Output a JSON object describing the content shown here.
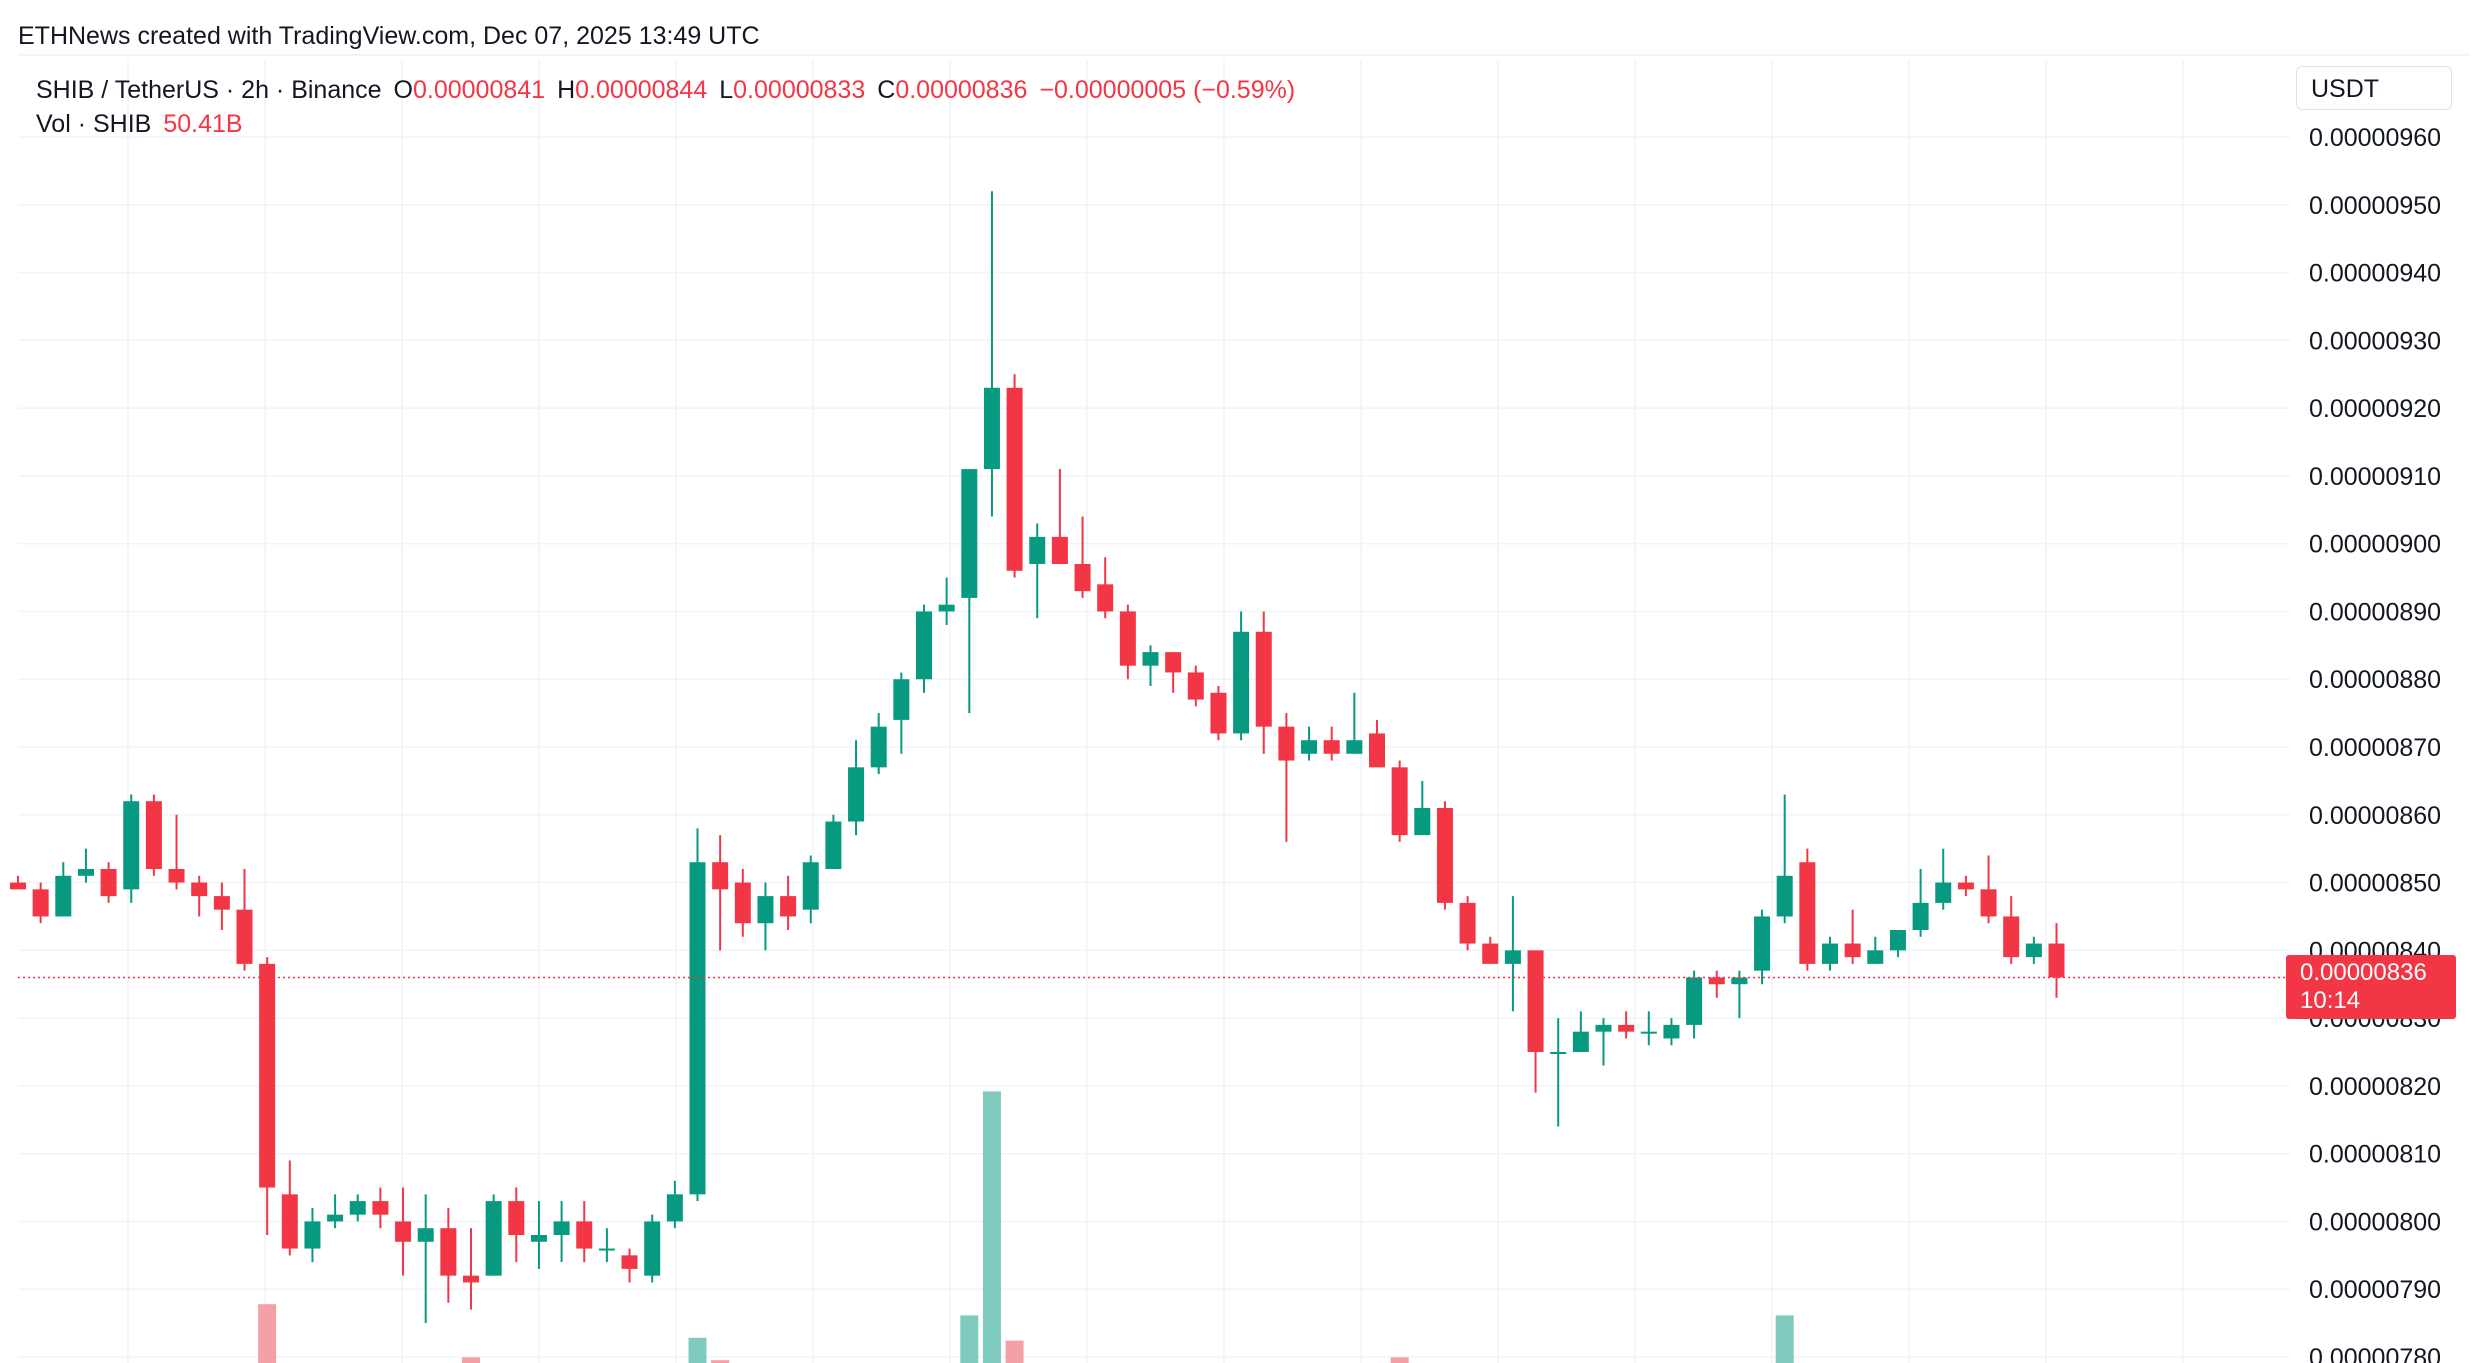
{
  "header": {
    "attribution": "ETHNews created with TradingView.com, Dec 07, 2025 13:49 UTC"
  },
  "legend": {
    "symbol": "SHIB / TetherUS · 2h · Binance",
    "open_label": "O",
    "open": "0.00000841",
    "high_label": "H",
    "high": "0.00000844",
    "low_label": "L",
    "low": "0.00000833",
    "close_label": "C",
    "close": "0.00000836",
    "change": "−0.00000005 (−0.59%)",
    "vol_label": "Vol · SHIB",
    "vol_value": "50.41B"
  },
  "axis": {
    "currency": "USDT"
  },
  "last_price": {
    "price": "0.00000836",
    "countdown": "10:14"
  },
  "colors": {
    "up": "#089981",
    "down": "#f23645",
    "up_volume": "#7fcbbf",
    "down_volume": "#f59fa6",
    "grid": "#f0f3fa",
    "text": "#131722"
  },
  "chart_data": {
    "type": "candlestick",
    "ylim": [
      7.8e-06,
      9.65e-06
    ],
    "y_ticks": [
      "0.00000960",
      "0.00000950",
      "0.00000940",
      "0.00000930",
      "0.00000920",
      "0.00000910",
      "0.00000900",
      "0.00000890",
      "0.00000880",
      "0.00000870",
      "0.00000860",
      "0.00000850",
      "0.00000840",
      "0.00000830",
      "0.00000820",
      "0.00000810",
      "0.00000800",
      "0.00000790",
      "0.00000780"
    ],
    "candles": [
      {
        "o": 8.5,
        "h": 8.51,
        "l": 8.49,
        "c": 8.49
      },
      {
        "o": 8.49,
        "h": 8.5,
        "l": 8.44,
        "c": 8.45
      },
      {
        "o": 8.45,
        "h": 8.53,
        "l": 8.45,
        "c": 8.51
      },
      {
        "o": 8.51,
        "h": 8.55,
        "l": 8.5,
        "c": 8.52
      },
      {
        "o": 8.52,
        "h": 8.53,
        "l": 8.47,
        "c": 8.48
      },
      {
        "o": 8.49,
        "h": 8.63,
        "l": 8.47,
        "c": 8.62
      },
      {
        "o": 8.62,
        "h": 8.63,
        "l": 8.51,
        "c": 8.52
      },
      {
        "o": 8.52,
        "h": 8.6,
        "l": 8.49,
        "c": 8.5
      },
      {
        "o": 8.5,
        "h": 8.51,
        "l": 8.45,
        "c": 8.48
      },
      {
        "o": 8.48,
        "h": 8.5,
        "l": 8.43,
        "c": 8.46
      },
      {
        "o": 8.46,
        "h": 8.52,
        "l": 8.37,
        "c": 8.38
      },
      {
        "o": 8.38,
        "h": 8.39,
        "l": 7.98,
        "c": 8.05
      },
      {
        "o": 8.04,
        "h": 8.09,
        "l": 7.95,
        "c": 7.96
      },
      {
        "o": 7.96,
        "h": 8.02,
        "l": 7.94,
        "c": 8.0
      },
      {
        "o": 8.0,
        "h": 8.04,
        "l": 7.99,
        "c": 8.01
      },
      {
        "o": 8.01,
        "h": 8.04,
        "l": 8.0,
        "c": 8.03
      },
      {
        "o": 8.03,
        "h": 8.05,
        "l": 7.99,
        "c": 8.01
      },
      {
        "o": 8.0,
        "h": 8.05,
        "l": 7.92,
        "c": 7.97
      },
      {
        "o": 7.97,
        "h": 8.04,
        "l": 7.85,
        "c": 7.99
      },
      {
        "o": 7.99,
        "h": 8.02,
        "l": 7.88,
        "c": 7.92
      },
      {
        "o": 7.92,
        "h": 7.99,
        "l": 7.87,
        "c": 7.91
      },
      {
        "o": 7.92,
        "h": 8.04,
        "l": 7.92,
        "c": 8.03
      },
      {
        "o": 8.03,
        "h": 8.05,
        "l": 7.94,
        "c": 7.98
      },
      {
        "o": 7.97,
        "h": 8.03,
        "l": 7.93,
        "c": 7.98
      },
      {
        "o": 7.98,
        "h": 8.03,
        "l": 7.94,
        "c": 8.0
      },
      {
        "o": 8.0,
        "h": 8.03,
        "l": 7.94,
        "c": 7.96
      },
      {
        "o": 7.96,
        "h": 7.99,
        "l": 7.94,
        "c": 7.96
      },
      {
        "o": 7.95,
        "h": 7.96,
        "l": 7.91,
        "c": 7.93
      },
      {
        "o": 7.92,
        "h": 8.01,
        "l": 7.91,
        "c": 8.0
      },
      {
        "o": 8.0,
        "h": 8.06,
        "l": 7.99,
        "c": 8.04
      },
      {
        "o": 8.04,
        "h": 8.58,
        "l": 8.03,
        "c": 8.53
      },
      {
        "o": 8.53,
        "h": 8.57,
        "l": 8.4,
        "c": 8.49
      },
      {
        "o": 8.5,
        "h": 8.52,
        "l": 8.42,
        "c": 8.44
      },
      {
        "o": 8.44,
        "h": 8.5,
        "l": 8.4,
        "c": 8.48
      },
      {
        "o": 8.48,
        "h": 8.51,
        "l": 8.43,
        "c": 8.45
      },
      {
        "o": 8.46,
        "h": 8.54,
        "l": 8.44,
        "c": 8.53
      },
      {
        "o": 8.52,
        "h": 8.6,
        "l": 8.52,
        "c": 8.59
      },
      {
        "o": 8.59,
        "h": 8.71,
        "l": 8.57,
        "c": 8.67
      },
      {
        "o": 8.67,
        "h": 8.75,
        "l": 8.66,
        "c": 8.73
      },
      {
        "o": 8.74,
        "h": 8.81,
        "l": 8.69,
        "c": 8.8
      },
      {
        "o": 8.8,
        "h": 8.91,
        "l": 8.78,
        "c": 8.9
      },
      {
        "o": 8.9,
        "h": 8.95,
        "l": 8.88,
        "c": 8.91
      },
      {
        "o": 8.92,
        "h": 9.11,
        "l": 8.75,
        "c": 9.11
      },
      {
        "o": 9.11,
        "h": 9.52,
        "l": 9.04,
        "c": 9.23
      },
      {
        "o": 9.23,
        "h": 9.25,
        "l": 8.95,
        "c": 8.96
      },
      {
        "o": 8.97,
        "h": 9.03,
        "l": 8.89,
        "c": 9.01
      },
      {
        "o": 9.01,
        "h": 9.11,
        "l": 8.97,
        "c": 8.97
      },
      {
        "o": 8.97,
        "h": 9.04,
        "l": 8.92,
        "c": 8.93
      },
      {
        "o": 8.94,
        "h": 8.98,
        "l": 8.89,
        "c": 8.9
      },
      {
        "o": 8.9,
        "h": 8.91,
        "l": 8.8,
        "c": 8.82
      },
      {
        "o": 8.82,
        "h": 8.85,
        "l": 8.79,
        "c": 8.84
      },
      {
        "o": 8.84,
        "h": 8.84,
        "l": 8.78,
        "c": 8.81
      },
      {
        "o": 8.81,
        "h": 8.82,
        "l": 8.76,
        "c": 8.77
      },
      {
        "o": 8.78,
        "h": 8.79,
        "l": 8.71,
        "c": 8.72
      },
      {
        "o": 8.72,
        "h": 8.9,
        "l": 8.71,
        "c": 8.87
      },
      {
        "o": 8.87,
        "h": 8.9,
        "l": 8.69,
        "c": 8.73
      },
      {
        "o": 8.73,
        "h": 8.75,
        "l": 8.56,
        "c": 8.68
      },
      {
        "o": 8.69,
        "h": 8.73,
        "l": 8.68,
        "c": 8.71
      },
      {
        "o": 8.71,
        "h": 8.73,
        "l": 8.68,
        "c": 8.69
      },
      {
        "o": 8.69,
        "h": 8.78,
        "l": 8.69,
        "c": 8.71
      },
      {
        "o": 8.72,
        "h": 8.74,
        "l": 8.67,
        "c": 8.67
      },
      {
        "o": 8.67,
        "h": 8.68,
        "l": 8.56,
        "c": 8.57
      },
      {
        "o": 8.57,
        "h": 8.65,
        "l": 8.57,
        "c": 8.61
      },
      {
        "o": 8.61,
        "h": 8.62,
        "l": 8.46,
        "c": 8.47
      },
      {
        "o": 8.47,
        "h": 8.48,
        "l": 8.4,
        "c": 8.41
      },
      {
        "o": 8.41,
        "h": 8.42,
        "l": 8.38,
        "c": 8.38
      },
      {
        "o": 8.38,
        "h": 8.48,
        "l": 8.31,
        "c": 8.4
      },
      {
        "o": 8.4,
        "h": 8.4,
        "l": 8.19,
        "c": 8.25
      },
      {
        "o": 8.25,
        "h": 8.3,
        "l": 8.14,
        "c": 8.25
      },
      {
        "o": 8.25,
        "h": 8.31,
        "l": 8.25,
        "c": 8.28
      },
      {
        "o": 8.28,
        "h": 8.3,
        "l": 8.23,
        "c": 8.29
      },
      {
        "o": 8.29,
        "h": 8.31,
        "l": 8.27,
        "c": 8.28
      },
      {
        "o": 8.28,
        "h": 8.31,
        "l": 8.26,
        "c": 8.28
      },
      {
        "o": 8.27,
        "h": 8.3,
        "l": 8.26,
        "c": 8.29
      },
      {
        "o": 8.29,
        "h": 8.37,
        "l": 8.27,
        "c": 8.36
      },
      {
        "o": 8.36,
        "h": 8.37,
        "l": 8.33,
        "c": 8.35
      },
      {
        "o": 8.35,
        "h": 8.37,
        "l": 8.3,
        "c": 8.36
      },
      {
        "o": 8.37,
        "h": 8.46,
        "l": 8.35,
        "c": 8.45
      },
      {
        "o": 8.45,
        "h": 8.63,
        "l": 8.44,
        "c": 8.51
      },
      {
        "o": 8.53,
        "h": 8.55,
        "l": 8.37,
        "c": 8.38
      },
      {
        "o": 8.38,
        "h": 8.42,
        "l": 8.37,
        "c": 8.41
      },
      {
        "o": 8.41,
        "h": 8.46,
        "l": 8.38,
        "c": 8.39
      },
      {
        "o": 8.38,
        "h": 8.42,
        "l": 8.38,
        "c": 8.4
      },
      {
        "o": 8.4,
        "h": 8.43,
        "l": 8.39,
        "c": 8.43
      },
      {
        "o": 8.43,
        "h": 8.52,
        "l": 8.42,
        "c": 8.47
      },
      {
        "o": 8.47,
        "h": 8.55,
        "l": 8.46,
        "c": 8.5
      },
      {
        "o": 8.5,
        "h": 8.51,
        "l": 8.48,
        "c": 8.49
      },
      {
        "o": 8.49,
        "h": 8.54,
        "l": 8.44,
        "c": 8.45
      },
      {
        "o": 8.45,
        "h": 8.48,
        "l": 8.38,
        "c": 8.39
      },
      {
        "o": 8.39,
        "h": 8.42,
        "l": 8.38,
        "c": 8.41
      },
      {
        "o": 8.41,
        "h": 8.44,
        "l": 8.33,
        "c": 8.36
      }
    ],
    "volume_max": 1.0,
    "volumes": [
      0,
      0,
      0,
      0,
      0,
      0,
      0,
      0,
      0,
      0,
      0,
      0.21,
      0,
      0,
      0,
      0,
      0,
      0,
      0,
      0,
      0.02,
      0,
      0,
      0,
      0,
      0,
      0,
      0,
      0,
      0,
      0.09,
      0.01,
      0,
      0,
      0,
      0,
      0,
      0,
      0,
      0,
      0,
      0,
      0.17,
      0.97,
      0.08,
      0,
      0,
      0,
      0,
      0,
      0,
      0,
      0,
      0,
      0,
      0,
      0,
      0,
      0,
      0,
      0,
      0.02,
      0,
      0,
      0,
      0,
      0,
      0,
      0,
      0,
      0,
      0,
      0,
      0,
      0,
      0,
      0,
      0,
      0.17,
      0,
      0,
      0,
      0,
      0,
      0,
      0,
      0,
      0,
      0,
      0,
      0
    ]
  }
}
